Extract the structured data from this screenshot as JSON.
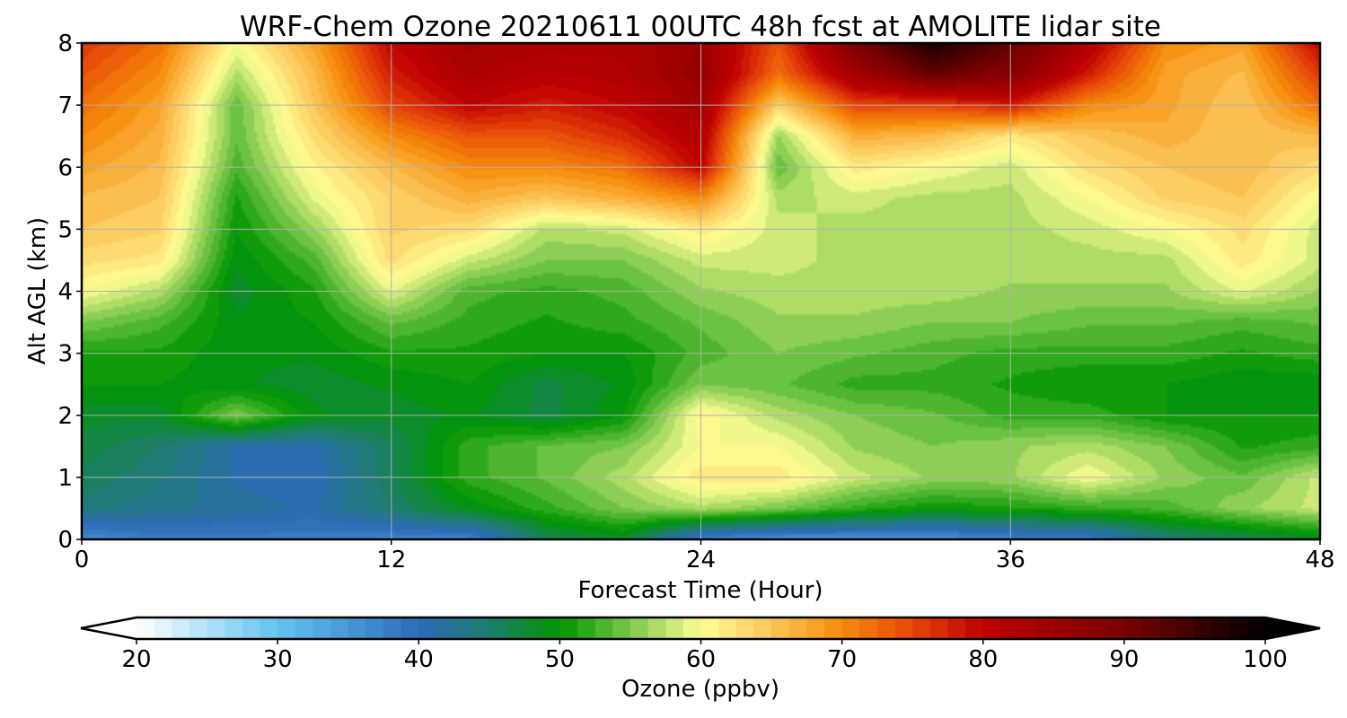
{
  "chart_data": {
    "type": "heatmap",
    "title": "WRF-Chem Ozone  20210611 00UTC 48h fcst at AMOLITE lidar site",
    "xlabel": "Forecast Time (Hour)",
    "ylabel": "Alt AGL (km)",
    "xlim": [
      0,
      48
    ],
    "ylim": [
      0,
      8
    ],
    "xticks": [
      "0",
      "12",
      "24",
      "36",
      "48"
    ],
    "yticks": [
      "0",
      "1",
      "2",
      "3",
      "4",
      "5",
      "6",
      "7",
      "8"
    ],
    "grid": true,
    "x": [
      0,
      3,
      6,
      9,
      12,
      15,
      18,
      21,
      24,
      27,
      30,
      33,
      36,
      39,
      42,
      45,
      48
    ],
    "y": [
      0,
      0.5,
      1,
      1.5,
      2,
      2.5,
      3,
      3.5,
      4,
      4.5,
      5,
      5.5,
      6,
      6.5,
      7,
      7.5,
      8
    ],
    "values": [
      [
        36,
        38,
        38,
        38,
        37,
        37,
        46,
        48,
        37,
        35,
        35,
        35,
        37,
        38,
        44,
        46,
        48
      ],
      [
        44,
        43,
        42,
        41,
        45,
        49,
        52,
        55,
        57,
        55,
        52,
        50,
        51,
        52,
        53,
        56,
        58
      ],
      [
        46,
        44,
        41,
        40,
        46,
        52,
        54,
        57,
        62,
        62,
        58,
        56,
        56,
        60,
        56,
        54,
        58
      ],
      [
        47,
        45,
        41,
        41,
        46,
        52,
        54,
        55,
        60,
        60,
        56,
        55,
        56,
        57,
        55,
        51,
        52
      ],
      [
        48,
        48,
        55,
        49,
        48,
        49,
        47,
        50,
        61,
        57,
        55,
        54,
        52,
        52,
        50,
        50,
        50
      ],
      [
        50,
        50,
        49,
        48,
        49,
        50,
        47,
        49,
        55,
        54,
        52,
        52,
        51,
        50,
        50,
        49,
        49
      ],
      [
        51,
        51,
        49,
        49,
        51,
        51,
        50,
        50,
        53,
        55,
        54,
        53,
        52,
        52,
        52,
        51,
        52
      ],
      [
        55,
        53,
        49,
        50,
        54,
        52,
        51,
        52,
        54,
        56,
        56,
        55,
        55,
        54,
        54,
        53,
        54
      ],
      [
        60,
        57,
        48,
        51,
        59,
        53,
        52,
        53,
        56,
        57,
        57,
        57,
        56,
        56,
        56,
        59,
        56
      ],
      [
        63,
        62,
        49,
        53,
        63,
        58,
        55,
        55,
        58,
        58,
        57,
        57,
        57,
        57,
        57,
        62,
        58
      ],
      [
        65,
        64,
        50,
        56,
        64,
        63,
        57,
        58,
        62,
        58,
        57,
        57,
        57,
        58,
        60,
        63,
        58
      ],
      [
        66,
        65,
        51,
        59,
        64,
        67,
        65,
        67,
        70,
        57,
        58,
        57,
        57,
        60,
        64,
        65,
        60
      ],
      [
        68,
        66,
        53,
        61,
        66,
        70,
        70,
        72,
        80,
        54,
        62,
        60,
        58,
        63,
        65,
        66,
        63
      ],
      [
        70,
        67,
        54,
        63,
        70,
        74,
        74,
        77,
        82,
        56,
        67,
        66,
        62,
        65,
        67,
        65,
        66
      ],
      [
        72,
        68,
        54,
        65,
        75,
        80,
        78,
        80,
        84,
        64,
        75,
        75,
        78,
        70,
        68,
        65,
        72
      ],
      [
        74,
        70,
        57,
        66,
        78,
        83,
        81,
        82,
        86,
        72,
        84,
        92,
        88,
        78,
        68,
        66,
        76
      ],
      [
        76,
        72,
        60,
        68,
        80,
        84,
        83,
        83,
        85,
        74,
        90,
        98,
        92,
        82,
        70,
        68,
        80
      ]
    ],
    "colorbar": {
      "label": "Ozone  (ppbv)",
      "min": 20,
      "max": 100,
      "ticks": [
        "20",
        "30",
        "40",
        "50",
        "60",
        "70",
        "80",
        "90",
        "100"
      ],
      "extend": "both",
      "colors": [
        {
          "v": 20,
          "c": "#ffffff"
        },
        {
          "v": 30,
          "c": "#64c3f0"
        },
        {
          "v": 40,
          "c": "#2c6cb8"
        },
        {
          "v": 45,
          "c": "#1f7d6d"
        },
        {
          "v": 50,
          "c": "#009600"
        },
        {
          "v": 55,
          "c": "#7cc84a"
        },
        {
          "v": 60,
          "c": "#ffff96"
        },
        {
          "v": 65,
          "c": "#fcc65a"
        },
        {
          "v": 70,
          "c": "#f58c0a"
        },
        {
          "v": 75,
          "c": "#e6460a"
        },
        {
          "v": 80,
          "c": "#be0000"
        },
        {
          "v": 90,
          "c": "#7a0000"
        },
        {
          "v": 100,
          "c": "#000000"
        }
      ]
    }
  }
}
